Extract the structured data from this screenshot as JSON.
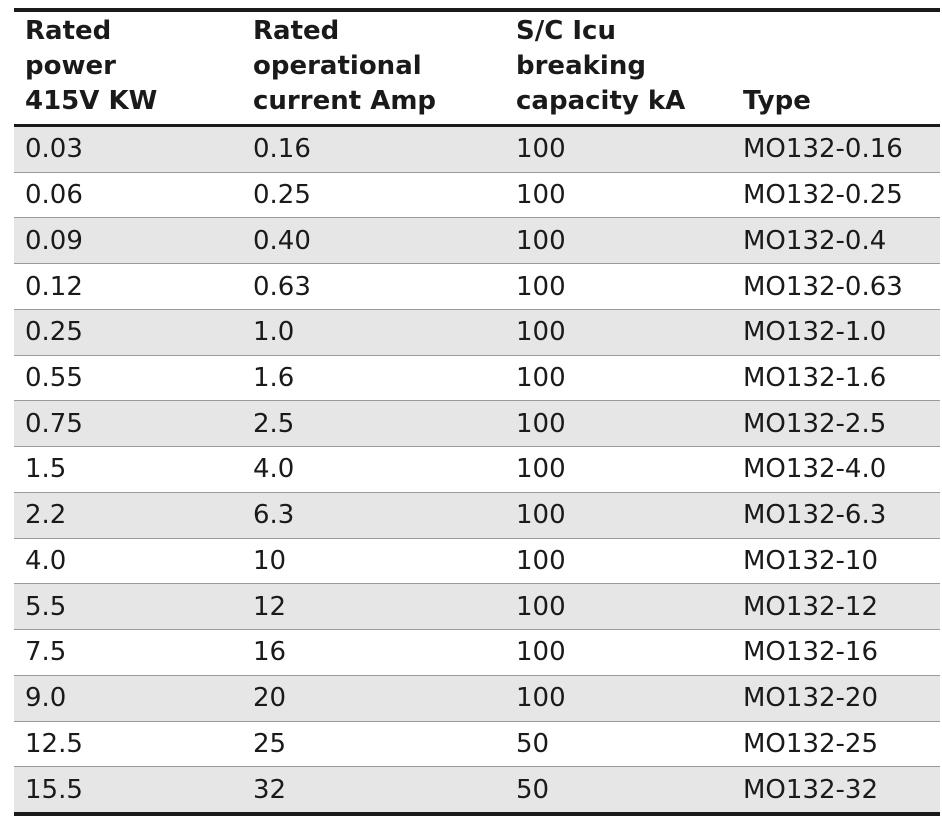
{
  "table": {
    "header": [
      [
        "Rated",
        "power",
        "415V KW"
      ],
      [
        "Rated",
        "operational",
        "current Amp"
      ],
      [
        "S/C Icu",
        "breaking",
        "capacity kA"
      ],
      [
        "Type"
      ]
    ],
    "rows": [
      [
        "0.03",
        "0.16",
        "100",
        "MO132-0.16"
      ],
      [
        "0.06",
        "0.25",
        "100",
        "MO132-0.25"
      ],
      [
        "0.09",
        "0.40",
        "100",
        "MO132-0.4"
      ],
      [
        "0.12",
        "0.63",
        "100",
        "MO132-0.63"
      ],
      [
        "0.25",
        "1.0",
        "100",
        "MO132-1.0"
      ],
      [
        "0.55",
        "1.6",
        "100",
        "MO132-1.6"
      ],
      [
        "0.75",
        "2.5",
        "100",
        "MO132-2.5"
      ],
      [
        "1.5",
        "4.0",
        "100",
        "MO132-4.0"
      ],
      [
        "2.2",
        "6.3",
        "100",
        "MO132-6.3"
      ],
      [
        "4.0",
        "10",
        "100",
        "MO132-10"
      ],
      [
        "5.5",
        "12",
        "100",
        "MO132-12"
      ],
      [
        "7.5",
        "16",
        "100",
        "MO132-16"
      ],
      [
        "9.0",
        "20",
        "100",
        "MO132-20"
      ],
      [
        "12.5",
        "25",
        "50",
        "MO132-25"
      ],
      [
        "15.5",
        "32",
        "50",
        "MO132-32"
      ]
    ]
  }
}
